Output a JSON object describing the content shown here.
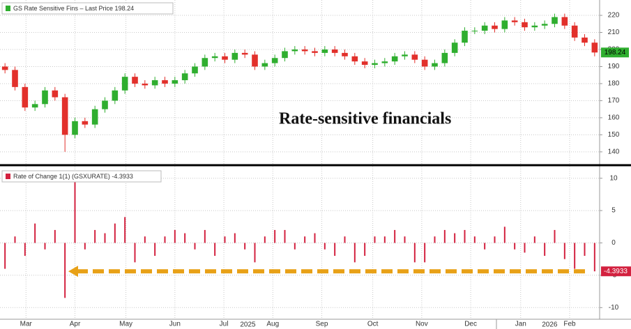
{
  "chart_data": [
    {
      "type": "candlestick",
      "legend": "GS Rate Sensitive Fins  – Last Price 198.24",
      "annotation": "Rate-sensitive financials",
      "up_color": "#2fae2f",
      "down_color": "#e2302b",
      "categories": [
        null,
        null,
        null,
        null,
        null,
        null,
        null,
        null,
        null,
        null,
        null,
        null,
        null,
        null,
        null,
        null,
        null,
        null,
        null,
        null,
        null,
        null,
        null,
        null,
        null,
        null,
        null,
        null,
        null,
        null,
        null,
        null,
        null,
        null,
        null,
        null,
        null,
        null,
        null,
        null,
        null,
        null,
        null,
        null,
        null,
        null,
        null,
        null,
        null,
        null,
        null,
        null,
        null,
        null,
        null,
        null,
        null,
        null,
        null,
        null
      ],
      "open": [
        190,
        188,
        178,
        166,
        168,
        176,
        172,
        150,
        158,
        156,
        165,
        170,
        176,
        184,
        180,
        179,
        182,
        180,
        182,
        186,
        190,
        195,
        196,
        194,
        198,
        197,
        190,
        192,
        195,
        199,
        200,
        199,
        198,
        200,
        198,
        196,
        193,
        191,
        192,
        193,
        196,
        197,
        194,
        190,
        192,
        198,
        204,
        211,
        211,
        214,
        212,
        217,
        216,
        213,
        214,
        215,
        219,
        214,
        207,
        204
      ],
      "high": [
        192,
        190,
        180,
        170,
        178,
        178,
        174,
        160,
        160,
        167,
        172,
        178,
        186,
        186,
        182,
        184,
        184,
        184,
        188,
        192,
        197,
        198,
        198,
        200,
        200,
        199,
        194,
        197,
        201,
        202,
        202,
        201,
        202,
        202,
        200,
        198,
        195,
        194,
        195,
        198,
        199,
        199,
        196,
        194,
        200,
        206,
        213,
        213,
        216,
        216,
        219,
        219,
        218,
        216,
        217,
        221,
        221,
        216,
        209,
        206
      ],
      "low": [
        186,
        176,
        164,
        164,
        166,
        170,
        140,
        148,
        154,
        154,
        163,
        168,
        174,
        178,
        177,
        177,
        178,
        178,
        180,
        184,
        188,
        193,
        192,
        192,
        195,
        188,
        188,
        190,
        193,
        197,
        197,
        196,
        196,
        196,
        194,
        191,
        189,
        189,
        190,
        191,
        194,
        192,
        188,
        188,
        190,
        196,
        202,
        209,
        209,
        210,
        210,
        214,
        211,
        211,
        212,
        213,
        212,
        205,
        202,
        196
      ],
      "close": [
        188,
        178,
        166,
        168,
        176,
        172,
        150,
        158,
        156,
        165,
        170,
        176,
        184,
        180,
        179,
        182,
        180,
        182,
        186,
        190,
        195,
        196,
        194,
        198,
        197,
        190,
        192,
        195,
        199,
        200,
        199,
        198,
        200,
        198,
        196,
        193,
        191,
        192,
        193,
        196,
        197,
        194,
        190,
        192,
        198,
        204,
        211,
        211,
        214,
        212,
        217,
        216,
        213,
        214,
        215,
        219,
        214,
        207,
        204,
        198.24
      ],
      "xlim": [
        0,
        60
      ],
      "ylim": [
        133,
        229
      ],
      "yticks": [
        140,
        150,
        160,
        170,
        180,
        190,
        200,
        210,
        220
      ],
      "grid": true
    },
    {
      "type": "bar",
      "legend": "Rate of Change 1(1) (GSXURATE) -4.3933",
      "color": "#d3213f",
      "arrow_color": "#e8a117",
      "categories": [
        null,
        null,
        null,
        null,
        null,
        null,
        null,
        null,
        null,
        null,
        null,
        null,
        null,
        null,
        null,
        null,
        null,
        null,
        null,
        null,
        null,
        null,
        null,
        null,
        null,
        null,
        null,
        null,
        null,
        null,
        null,
        null,
        null,
        null,
        null,
        null,
        null,
        null,
        null,
        null,
        null,
        null,
        null,
        null,
        null,
        null,
        null,
        null,
        null,
        null,
        null,
        null,
        null,
        null,
        null,
        null,
        null,
        null,
        null,
        null
      ],
      "values": [
        -4,
        1,
        -2,
        3,
        -1,
        2,
        -8.5,
        9.5,
        -1,
        2,
        1.5,
        3,
        4,
        -3,
        1,
        -2,
        1,
        2,
        1.5,
        -1,
        2,
        -2,
        1,
        1.5,
        -1,
        -3,
        1,
        2,
        2,
        -1,
        1,
        1.5,
        -1,
        -2,
        1,
        -3,
        -2,
        1,
        1,
        2,
        1,
        -3,
        -3,
        1,
        2,
        1.5,
        2,
        1,
        -1,
        1,
        2.5,
        -1,
        -1.5,
        1,
        -2,
        2,
        -2.5,
        -4,
        -2,
        -4.3933
      ],
      "xlim": [
        0,
        60
      ],
      "ylim": [
        -11.8,
        11.8
      ],
      "yticks": [
        -10,
        -5,
        0,
        5,
        10
      ],
      "xticks": [
        {
          "value": 2.6,
          "label": "Mar"
        },
        {
          "value": 7.5,
          "label": "Apr"
        },
        {
          "value": 12.6,
          "label": "May"
        },
        {
          "value": 17.5,
          "label": "Jun"
        },
        {
          "value": 22.4,
          "label": "Jul"
        },
        {
          "value": 27.3,
          "label": "Aug"
        },
        {
          "value": 32.2,
          "label": "Sep"
        },
        {
          "value": 37.3,
          "label": "Oct"
        },
        {
          "value": 42.2,
          "label": "Nov"
        },
        {
          "value": 47.1,
          "label": "Dec"
        },
        {
          "value": 52.1,
          "label": "Jan"
        },
        {
          "value": 57.0,
          "label": "Feb"
        }
      ],
      "year_ticks": [
        {
          "value": 24.8,
          "label": "2025"
        },
        {
          "value": 55.0,
          "label": "2026"
        }
      ],
      "grid": true
    }
  ]
}
